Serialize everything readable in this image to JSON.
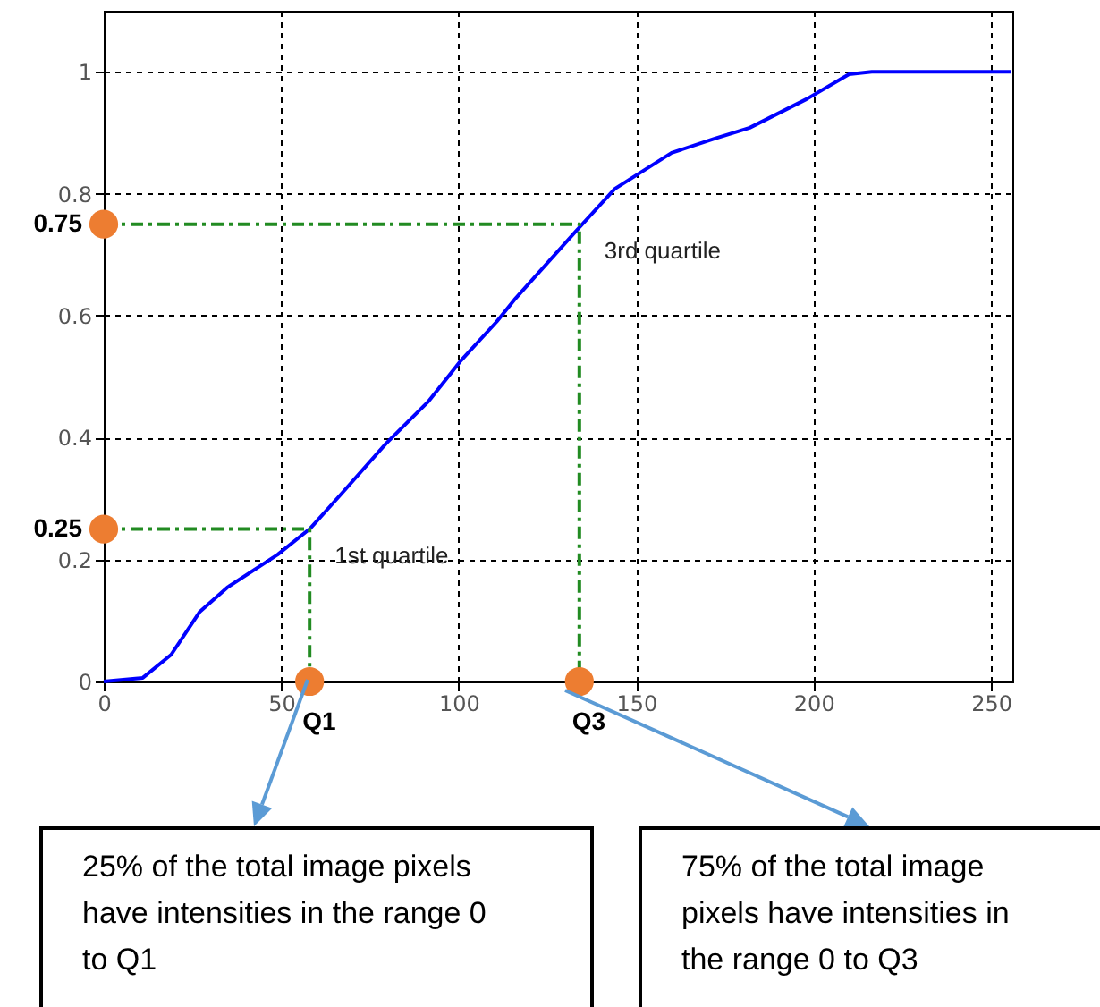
{
  "chart_data": {
    "type": "line",
    "xlim": [
      0,
      256
    ],
    "ylim": [
      0,
      1.1
    ],
    "xticks": [
      0,
      50,
      100,
      150,
      200,
      250
    ],
    "yticks": [
      0,
      0.2,
      0.4,
      0.6,
      0.8,
      1
    ],
    "grid": true,
    "series": [
      {
        "color": "#0000ff",
        "marker": "none",
        "line_style": "solid",
        "x": [
          0,
          11,
          19,
          27,
          35,
          49,
          58,
          67,
          79.5,
          91.6,
          100.6,
          110.7,
          115.7,
          133.9,
          144,
          160,
          172,
          182,
          198,
          210,
          216.4,
          255.6
        ],
        "values": [
          0,
          0.006,
          0.044,
          0.114,
          0.155,
          0.208,
          0.25,
          0.308,
          0.39,
          0.46,
          0.526,
          0.59,
          0.626,
          0.744,
          0.808,
          0.867,
          0.89,
          0.908,
          0.955,
          0.996,
          1,
          1
        ]
      },
      {
        "type": "line",
        "color": "#228b22",
        "marker": "none",
        "line_style": "dashed",
        "x": [
          0,
          58,
          58
        ],
        "values": [
          0.25,
          0.25,
          0
        ]
      },
      {
        "type": "line",
        "color": "#228b22",
        "marker": "none",
        "line_style": "dashed",
        "x": [
          0,
          134,
          134
        ],
        "values": [
          0.75,
          0.75,
          0
        ]
      },
      {
        "type": "scatter",
        "color": "#ed7d31",
        "marker": "circle",
        "x": [
          0,
          0,
          58,
          134
        ],
        "values": [
          0.25,
          0.75,
          0,
          0
        ]
      }
    ],
    "annotations": [
      {
        "text": "0.75",
        "x": 0,
        "y": 0.75
      },
      {
        "text": "0.25",
        "x": 0,
        "y": 0.25
      },
      {
        "text": "Q1",
        "x": 58,
        "y": 0
      },
      {
        "text": "Q3",
        "x": 134,
        "y": 0
      },
      {
        "text": "1st quartile",
        "x": 58,
        "y": 0.25
      },
      {
        "text": "3rd quartile",
        "x": 134,
        "y": 0.75
      },
      "25% of the total image pixels have intensities in the range 0 to Q1",
      "75% of the total image pixels have intensities in the range 0 to Q3"
    ]
  }
}
